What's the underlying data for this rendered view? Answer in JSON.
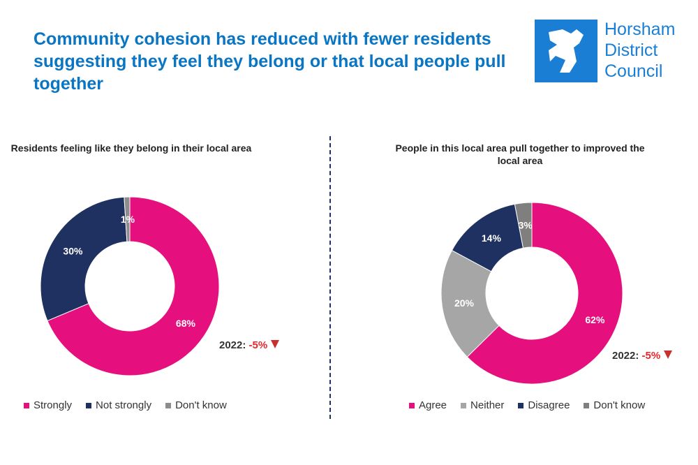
{
  "title": "Community cohesion has reduced with fewer residents suggesting they feel they belong or that local people pull together",
  "logo": {
    "lines": [
      "Horsham",
      "District",
      "Council"
    ],
    "color": "#1a7fd4"
  },
  "chart_data": [
    {
      "type": "pie",
      "donut": true,
      "title": "Residents feeling like they belong in their local area",
      "categories": [
        "Strongly",
        "Not strongly",
        "Don't know"
      ],
      "values": [
        68,
        30,
        1
      ],
      "labels": [
        "68%",
        "30%",
        "1%"
      ],
      "colors": [
        "#e5107e",
        "#1f3160",
        "#8c8c8c"
      ],
      "note": {
        "label": "2022:",
        "change": "-5%",
        "direction": "down"
      },
      "legend": "bottom"
    },
    {
      "type": "pie",
      "donut": true,
      "title": "People in this local area pull together to improved the local area",
      "categories": [
        "Agree",
        "Neither",
        "Disagree",
        "Don't know"
      ],
      "values": [
        62,
        20,
        14,
        3
      ],
      "labels": [
        "62%",
        "20%",
        "14%",
        "3%"
      ],
      "colors": [
        "#e5107e",
        "#a6a6a6",
        "#1f3160",
        "#7f7f7f"
      ],
      "note": {
        "label": "2022:",
        "change": "-5%",
        "direction": "down"
      },
      "legend": "bottom"
    }
  ]
}
